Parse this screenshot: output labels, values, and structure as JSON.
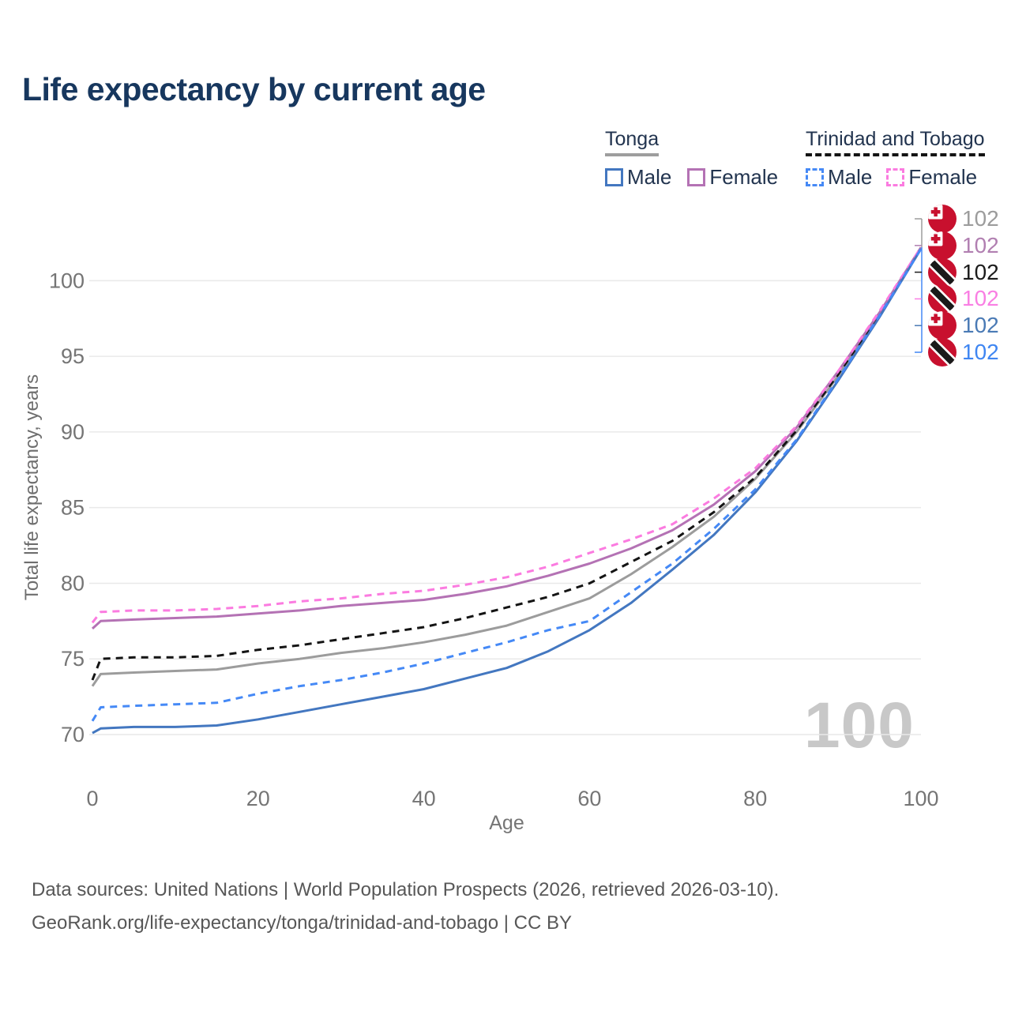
{
  "title": "Life expectancy by current age",
  "legend": {
    "tonga": {
      "label": "Tonga",
      "male": "Male",
      "female": "Female",
      "male_color": "#4377c0",
      "female_color": "#b472b4",
      "underline_color": "#9e9e9e",
      "line_style": "solid"
    },
    "tt": {
      "label": "Trinidad and Tobago",
      "male": "Male",
      "female": "Female",
      "male_color": "#4589f6",
      "female_color": "#fb7be0",
      "underline_color": "#141414",
      "line_style": "dashed"
    }
  },
  "chart_data": {
    "type": "line",
    "title": "Life expectancy by current age",
    "xlabel": "Age",
    "ylabel": "Total life expectancy, years",
    "xlim": [
      0,
      100
    ],
    "ylim": [
      69.5,
      102.5
    ],
    "x_ticks": [
      0,
      20,
      40,
      60,
      80,
      100
    ],
    "y_ticks": [
      70,
      75,
      80,
      85,
      90,
      95,
      100
    ],
    "grid": "horizontal",
    "legend_position": "top-right",
    "x": [
      0,
      1,
      5,
      10,
      15,
      20,
      25,
      30,
      35,
      40,
      45,
      50,
      55,
      60,
      65,
      70,
      75,
      80,
      85,
      90,
      95,
      100
    ],
    "series": [
      {
        "name": "Tonga Both sexes",
        "country": "Tonga",
        "sex": "both",
        "color": "#9c9c9c",
        "dash": "solid",
        "values": [
          73.2,
          74.0,
          74.1,
          74.2,
          74.3,
          74.7,
          75.0,
          75.4,
          75.7,
          76.1,
          76.6,
          77.2,
          78.1,
          79.0,
          80.6,
          82.4,
          84.4,
          86.9,
          90.0,
          93.7,
          97.8,
          102.1
        ]
      },
      {
        "name": "Trinidad and Tobago Both sexes",
        "country": "Trinidad and Tobago",
        "sex": "both",
        "color": "#141414",
        "dash": "dashed",
        "values": [
          73.6,
          75.0,
          75.1,
          75.1,
          75.2,
          75.6,
          75.9,
          76.3,
          76.7,
          77.1,
          77.7,
          78.4,
          79.1,
          80.0,
          81.4,
          82.8,
          84.7,
          87.0,
          90.1,
          93.8,
          97.8,
          102.1
        ]
      },
      {
        "name": "Tonga Female",
        "country": "Tonga",
        "sex": "female",
        "color": "#b472b4",
        "dash": "solid",
        "values": [
          77.0,
          77.5,
          77.6,
          77.7,
          77.8,
          78.0,
          78.2,
          78.5,
          78.7,
          78.9,
          79.3,
          79.8,
          80.5,
          81.3,
          82.3,
          83.5,
          85.2,
          87.4,
          90.3,
          94.0,
          97.9,
          102.2
        ]
      },
      {
        "name": "Trinidad and Tobago Female",
        "country": "Trinidad and Tobago",
        "sex": "female",
        "color": "#fb7be0",
        "dash": "dashed",
        "values": [
          77.4,
          78.1,
          78.2,
          78.2,
          78.3,
          78.5,
          78.8,
          79.0,
          79.3,
          79.5,
          79.9,
          80.4,
          81.1,
          82.0,
          82.9,
          83.9,
          85.6,
          87.6,
          90.4,
          94.0,
          98.0,
          102.2
        ]
      },
      {
        "name": "Tonga Male",
        "country": "Tonga",
        "sex": "male",
        "color": "#4377c0",
        "dash": "solid",
        "values": [
          70.1,
          70.4,
          70.5,
          70.5,
          70.6,
          71.0,
          71.5,
          72.0,
          72.5,
          73.0,
          73.7,
          74.4,
          75.5,
          76.9,
          78.7,
          80.9,
          83.2,
          86.0,
          89.4,
          93.4,
          97.6,
          102.1
        ]
      },
      {
        "name": "Trinidad and Tobago Male",
        "country": "Trinidad and Tobago",
        "sex": "male",
        "color": "#4589f6",
        "dash": "dashed",
        "values": [
          70.9,
          71.8,
          71.9,
          72.0,
          72.1,
          72.7,
          73.2,
          73.6,
          74.1,
          74.7,
          75.4,
          76.1,
          76.9,
          77.5,
          79.4,
          81.3,
          83.6,
          86.2,
          89.5,
          93.5,
          97.7,
          102.1
        ]
      }
    ]
  },
  "right_labels": [
    {
      "value": "102",
      "color": "#9c9c9c",
      "flag": "tonga"
    },
    {
      "value": "102",
      "color": "#b17fb1",
      "flag": "tonga"
    },
    {
      "value": "102",
      "color": "#1c1c1c",
      "flag": "tt"
    },
    {
      "value": "102",
      "color": "#f97fe3",
      "flag": "tt"
    },
    {
      "value": "102",
      "color": "#4a7ab5",
      "flag": "tonga"
    },
    {
      "value": "102",
      "color": "#3f86f2",
      "flag": "tt"
    }
  ],
  "watermark": "100",
  "footer": {
    "line1": "Data sources: United Nations | World Population Prospects (2026, retrieved 2026-03-10).",
    "line2": "GeoRank.org/life-expectancy/tonga/trinidad-and-tobago | CC BY"
  },
  "colors": {
    "title": "#17375e",
    "axis_text": "#757575",
    "gridline": "#e9e9e9",
    "watermark": "#c8c8c8",
    "flag_red": "#c8102e"
  }
}
